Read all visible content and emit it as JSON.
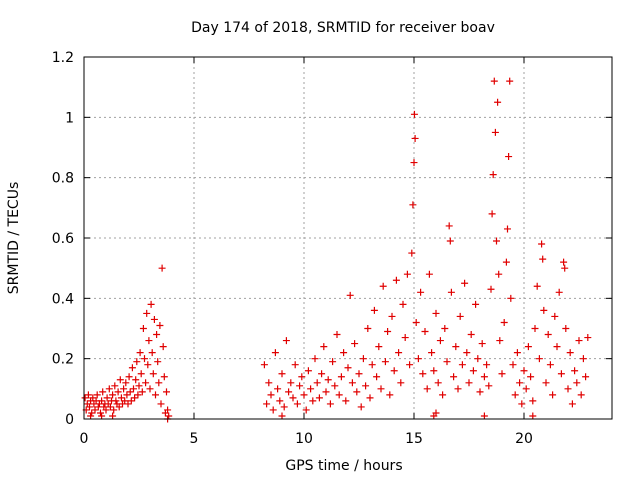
{
  "chart_data": {
    "type": "scatter",
    "title": "Day 174 of 2018, SRMTID for receiver boav",
    "xlabel": "GPS time / hours",
    "ylabel": "SRMTID / TECUs",
    "xlim": [
      0,
      24
    ],
    "ylim": [
      0,
      1.2
    ],
    "xticks": [
      0,
      5,
      10,
      15,
      20
    ],
    "xtick_labels": [
      "0",
      "5",
      "10",
      "15",
      "20"
    ],
    "yticks": [
      0,
      0.2,
      0.4,
      0.6,
      0.8,
      1,
      1.2
    ],
    "ytick_labels": [
      "0",
      "0.2",
      "0.4",
      "0.6",
      "0.8",
      "1",
      "1.2"
    ],
    "grid": true,
    "marker": "+",
    "color": "#e00000",
    "series": [
      {
        "name": "SRMTID",
        "points": [
          [
            0.05,
            0.07
          ],
          [
            0.1,
            0.03
          ],
          [
            0.15,
            0.05
          ],
          [
            0.2,
            0.08
          ],
          [
            0.25,
            0.04
          ],
          [
            0.3,
            0.06
          ],
          [
            0.35,
            0.02
          ],
          [
            0.4,
            0.07
          ],
          [
            0.45,
            0.05
          ],
          [
            0.5,
            0.03
          ],
          [
            0.55,
            0.06
          ],
          [
            0.6,
            0.08
          ],
          [
            0.65,
            0.04
          ],
          [
            0.7,
            0.05
          ],
          [
            0.75,
            0.02
          ],
          [
            0.8,
            0.06
          ],
          [
            0.85,
            0.09
          ],
          [
            0.9,
            0.04
          ],
          [
            0.95,
            0.05
          ],
          [
            1.0,
            0.03
          ],
          [
            1.05,
            0.07
          ],
          [
            1.1,
            0.05
          ],
          [
            1.15,
            0.1
          ],
          [
            1.2,
            0.04
          ],
          [
            1.25,
            0.06
          ],
          [
            1.3,
            0.08
          ],
          [
            1.35,
            0.03
          ],
          [
            1.4,
            0.11
          ],
          [
            1.45,
            0.06
          ],
          [
            1.5,
            0.05
          ],
          [
            1.55,
            0.09
          ],
          [
            1.6,
            0.04
          ],
          [
            1.65,
            0.13
          ],
          [
            1.7,
            0.07
          ],
          [
            1.75,
            0.05
          ],
          [
            1.8,
            0.1
          ],
          [
            1.85,
            0.06
          ],
          [
            1.9,
            0.12
          ],
          [
            1.95,
            0.08
          ],
          [
            2.0,
            0.05
          ],
          [
            2.05,
            0.14
          ],
          [
            2.1,
            0.09
          ],
          [
            2.15,
            0.06
          ],
          [
            2.2,
            0.17
          ],
          [
            2.25,
            0.1
          ],
          [
            2.3,
            0.07
          ],
          [
            2.35,
            0.13
          ],
          [
            2.4,
            0.19
          ],
          [
            2.45,
            0.08
          ],
          [
            2.5,
            0.11
          ],
          [
            2.55,
            0.22
          ],
          [
            2.6,
            0.15
          ],
          [
            2.65,
            0.09
          ],
          [
            2.7,
            0.3
          ],
          [
            2.75,
            0.2
          ],
          [
            2.8,
            0.12
          ],
          [
            2.85,
            0.35
          ],
          [
            2.9,
            0.18
          ],
          [
            2.95,
            0.26
          ],
          [
            3.0,
            0.1
          ],
          [
            3.05,
            0.38
          ],
          [
            3.1,
            0.22
          ],
          [
            3.15,
            0.15
          ],
          [
            3.2,
            0.33
          ],
          [
            3.25,
            0.08
          ],
          [
            3.3,
            0.28
          ],
          [
            3.35,
            0.19
          ],
          [
            3.4,
            0.12
          ],
          [
            3.45,
            0.31
          ],
          [
            3.5,
            0.05
          ],
          [
            3.55,
            0.5
          ],
          [
            3.6,
            0.24
          ],
          [
            3.65,
            0.14
          ],
          [
            3.7,
            0.02
          ],
          [
            3.75,
            0.09
          ],
          [
            3.8,
            0.03
          ],
          [
            3.85,
            0.01
          ],
          [
            0.3,
            0.01
          ],
          [
            0.8,
            0.01
          ],
          [
            1.3,
            0.01
          ],
          [
            8.2,
            0.18
          ],
          [
            8.3,
            0.05
          ],
          [
            8.4,
            0.12
          ],
          [
            8.5,
            0.08
          ],
          [
            8.6,
            0.03
          ],
          [
            8.7,
            0.22
          ],
          [
            8.8,
            0.1
          ],
          [
            8.9,
            0.06
          ],
          [
            9.0,
            0.15
          ],
          [
            9.1,
            0.04
          ],
          [
            9.2,
            0.26
          ],
          [
            9.3,
            0.09
          ],
          [
            9.4,
            0.12
          ],
          [
            9.5,
            0.07
          ],
          [
            9.6,
            0.18
          ],
          [
            9.7,
            0.05
          ],
          [
            9.8,
            0.11
          ],
          [
            9.9,
            0.14
          ],
          [
            10.0,
            0.08
          ],
          [
            10.1,
            0.03
          ],
          [
            10.2,
            0.16
          ],
          [
            10.3,
            0.1
          ],
          [
            10.4,
            0.06
          ],
          [
            10.5,
            0.2
          ],
          [
            10.6,
            0.12
          ],
          [
            10.7,
            0.07
          ],
          [
            10.8,
            0.15
          ],
          [
            10.9,
            0.24
          ],
          [
            11.0,
            0.09
          ],
          [
            11.1,
            0.13
          ],
          [
            11.2,
            0.05
          ],
          [
            11.3,
            0.19
          ],
          [
            11.4,
            0.11
          ],
          [
            11.5,
            0.28
          ],
          [
            11.6,
            0.08
          ],
          [
            11.7,
            0.14
          ],
          [
            11.8,
            0.22
          ],
          [
            11.9,
            0.06
          ],
          [
            12.0,
            0.17
          ],
          [
            12.1,
            0.41
          ],
          [
            12.2,
            0.12
          ],
          [
            12.3,
            0.25
          ],
          [
            12.4,
            0.09
          ],
          [
            12.5,
            0.15
          ],
          [
            12.6,
            0.04
          ],
          [
            12.7,
            0.2
          ],
          [
            12.8,
            0.11
          ],
          [
            12.9,
            0.3
          ],
          [
            13.0,
            0.07
          ],
          [
            13.1,
            0.18
          ],
          [
            13.2,
            0.36
          ],
          [
            13.3,
            0.14
          ],
          [
            13.4,
            0.24
          ],
          [
            13.5,
            0.1
          ],
          [
            13.6,
            0.44
          ],
          [
            13.7,
            0.19
          ],
          [
            13.8,
            0.29
          ],
          [
            13.9,
            0.08
          ],
          [
            14.0,
            0.34
          ],
          [
            14.1,
            0.16
          ],
          [
            14.2,
            0.46
          ],
          [
            14.3,
            0.22
          ],
          [
            14.4,
            0.12
          ],
          [
            14.5,
            0.38
          ],
          [
            14.6,
            0.27
          ],
          [
            14.7,
            0.48
          ],
          [
            14.8,
            0.18
          ],
          [
            14.9,
            0.55
          ],
          [
            14.95,
            0.71
          ],
          [
            15.0,
            0.85
          ],
          [
            15.02,
            1.01
          ],
          [
            15.05,
            0.93
          ],
          [
            15.1,
            0.32
          ],
          [
            15.2,
            0.2
          ],
          [
            15.3,
            0.42
          ],
          [
            15.4,
            0.15
          ],
          [
            15.5,
            0.29
          ],
          [
            15.6,
            0.1
          ],
          [
            15.7,
            0.48
          ],
          [
            15.8,
            0.22
          ],
          [
            15.9,
            0.16
          ],
          [
            16.0,
            0.35
          ],
          [
            16.1,
            0.12
          ],
          [
            16.2,
            0.26
          ],
          [
            16.3,
            0.08
          ],
          [
            16.4,
            0.3
          ],
          [
            16.5,
            0.19
          ],
          [
            16.6,
            0.64
          ],
          [
            16.65,
            0.59
          ],
          [
            16.7,
            0.42
          ],
          [
            16.8,
            0.14
          ],
          [
            16.9,
            0.24
          ],
          [
            17.0,
            0.1
          ],
          [
            17.1,
            0.34
          ],
          [
            17.2,
            0.18
          ],
          [
            17.3,
            0.45
          ],
          [
            17.4,
            0.22
          ],
          [
            17.5,
            0.12
          ],
          [
            17.6,
            0.28
          ],
          [
            17.7,
            0.16
          ],
          [
            17.8,
            0.38
          ],
          [
            17.9,
            0.2
          ],
          [
            18.0,
            0.09
          ],
          [
            18.1,
            0.25
          ],
          [
            18.2,
            0.14
          ],
          [
            18.3,
            0.18
          ],
          [
            18.4,
            0.11
          ],
          [
            18.5,
            0.43
          ],
          [
            18.55,
            0.68
          ],
          [
            18.6,
            0.81
          ],
          [
            18.65,
            1.12
          ],
          [
            18.7,
            0.95
          ],
          [
            18.75,
            0.59
          ],
          [
            18.8,
            1.05
          ],
          [
            18.85,
            0.48
          ],
          [
            18.9,
            0.26
          ],
          [
            19.0,
            0.15
          ],
          [
            19.1,
            0.32
          ],
          [
            19.2,
            0.52
          ],
          [
            19.25,
            0.63
          ],
          [
            19.3,
            0.87
          ],
          [
            19.35,
            1.12
          ],
          [
            19.4,
            0.4
          ],
          [
            19.5,
            0.18
          ],
          [
            19.6,
            0.08
          ],
          [
            19.7,
            0.22
          ],
          [
            19.8,
            0.12
          ],
          [
            19.9,
            0.05
          ],
          [
            20.0,
            0.16
          ],
          [
            20.1,
            0.1
          ],
          [
            20.2,
            0.24
          ],
          [
            20.3,
            0.14
          ],
          [
            20.4,
            0.06
          ],
          [
            20.5,
            0.3
          ],
          [
            20.6,
            0.44
          ],
          [
            20.7,
            0.2
          ],
          [
            20.8,
            0.58
          ],
          [
            20.85,
            0.53
          ],
          [
            20.9,
            0.36
          ],
          [
            21.0,
            0.12
          ],
          [
            21.1,
            0.28
          ],
          [
            21.2,
            0.18
          ],
          [
            21.3,
            0.08
          ],
          [
            21.4,
            0.34
          ],
          [
            21.5,
            0.24
          ],
          [
            21.6,
            0.42
          ],
          [
            21.7,
            0.15
          ],
          [
            21.8,
            0.52
          ],
          [
            21.85,
            0.5
          ],
          [
            21.9,
            0.3
          ],
          [
            22.0,
            0.1
          ],
          [
            22.1,
            0.22
          ],
          [
            22.2,
            0.05
          ],
          [
            22.3,
            0.16
          ],
          [
            22.4,
            0.12
          ],
          [
            22.5,
            0.26
          ],
          [
            22.6,
            0.08
          ],
          [
            22.7,
            0.2
          ],
          [
            22.8,
            0.14
          ],
          [
            22.9,
            0.27
          ],
          [
            9.0,
            0.01
          ],
          [
            15.9,
            0.01
          ],
          [
            16.0,
            0.02
          ],
          [
            18.2,
            0.01
          ],
          [
            20.4,
            0.01
          ],
          [
            3.8,
            0.0
          ]
        ]
      }
    ]
  }
}
